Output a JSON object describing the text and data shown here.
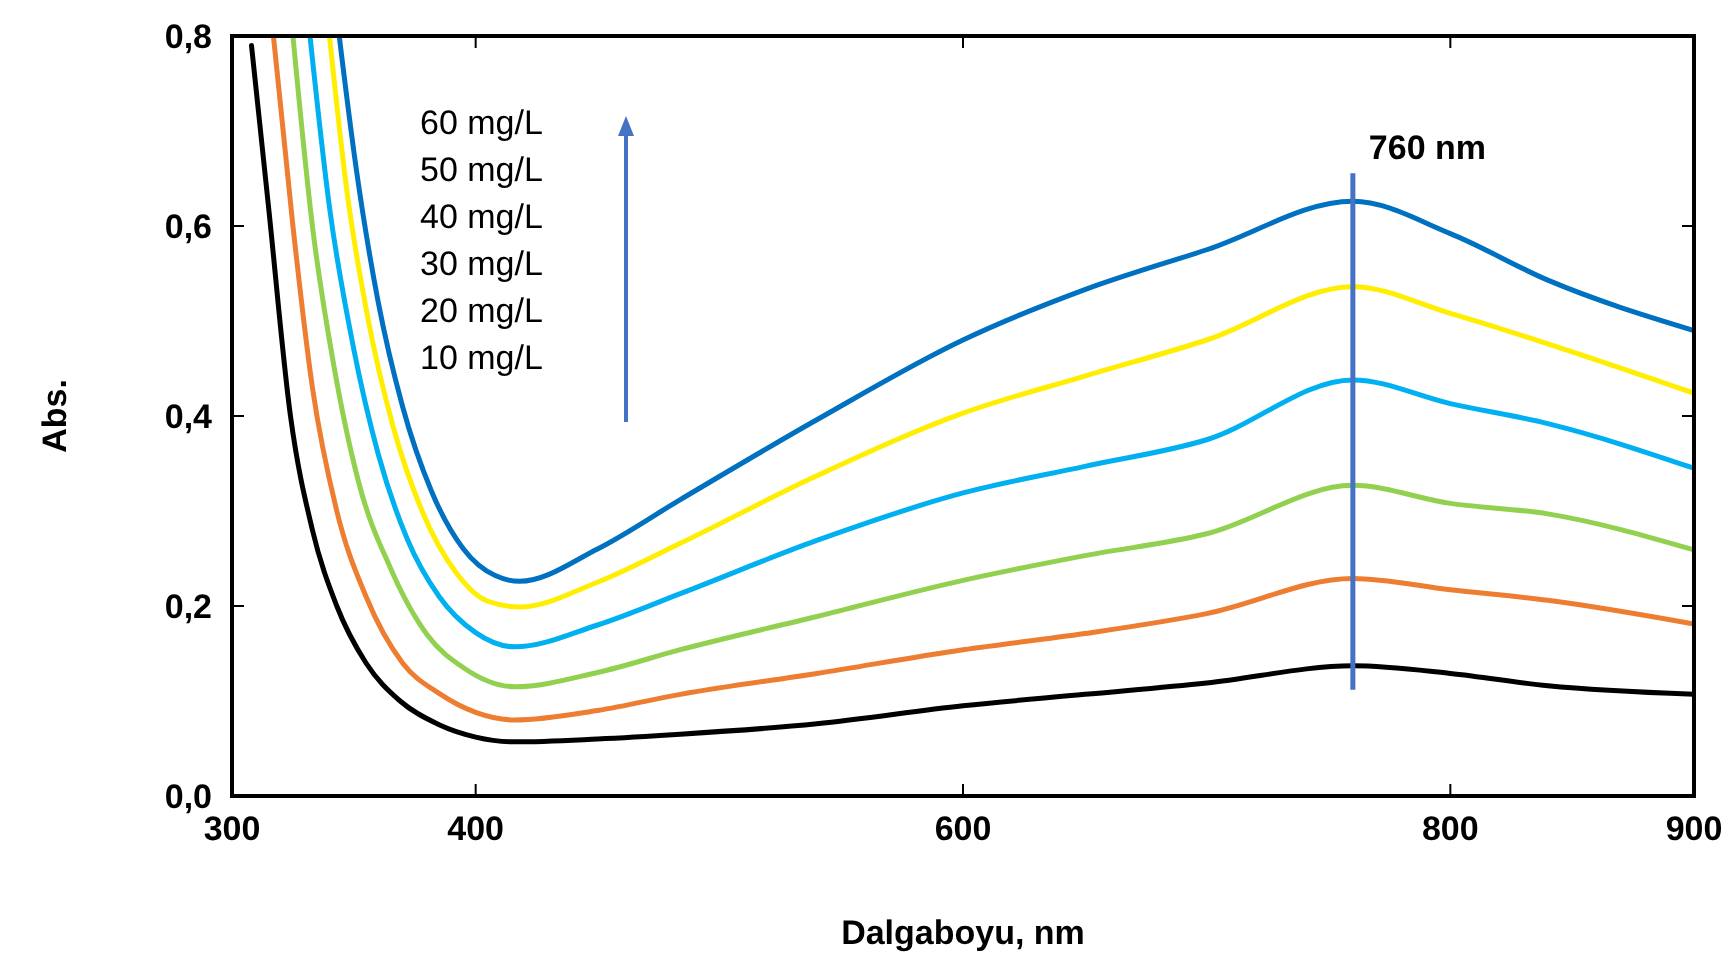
{
  "chart_data": {
    "type": "line",
    "xlabel": "Dalgaboyu, nm",
    "ylabel": "Abs.",
    "xlim": [
      300,
      900
    ],
    "ylim": [
      0,
      0.8
    ],
    "xticks": [
      300,
      400,
      600,
      800,
      900
    ],
    "yticks": [
      {
        "value": 0,
        "label": "0,0"
      },
      {
        "value": 0.2,
        "label": "0,2"
      },
      {
        "value": 0.4,
        "label": "0,4"
      },
      {
        "value": 0.6,
        "label": "0,6"
      },
      {
        "value": 0.8,
        "label": "0,8"
      }
    ],
    "grid": false,
    "marker": "none",
    "line_style": "solid",
    "ref_lines": [
      {
        "axis": "x",
        "value": 760,
        "label": "760 nm",
        "color": "#4472c4"
      }
    ],
    "annotations": [
      "60 mg/L",
      "50 mg/L",
      "40 mg/L",
      "30 mg/L",
      "20 mg/L",
      "10 mg/L"
    ],
    "series": [
      {
        "color": "#000000",
        "x": [
          308,
          315,
          324,
          333,
          343,
          355,
          369,
          385,
          400,
          416,
          450,
          484,
          540,
          600,
          650,
          700,
          760,
          800,
          840,
          900
        ],
        "values": [
          0.79,
          0.62,
          0.4,
          0.28,
          0.2,
          0.14,
          0.1,
          0.075,
          0.062,
          0.057,
          0.06,
          0.065,
          0.076,
          0.095,
          0.107,
          0.119,
          0.137,
          0.129,
          0.116,
          0.107
        ]
      },
      {
        "color": "#ed7d31",
        "x": [
          317,
          325,
          333,
          343,
          355,
          370,
          385,
          400,
          416,
          450,
          484,
          540,
          600,
          650,
          700,
          760,
          800,
          840,
          900
        ],
        "values": [
          0.8,
          0.6,
          0.43,
          0.3,
          0.21,
          0.14,
          0.108,
          0.088,
          0.08,
          0.09,
          0.107,
          0.129,
          0.154,
          0.171,
          0.192,
          0.229,
          0.217,
          0.206,
          0.181
        ]
      },
      {
        "color": "#92d050",
        "x": [
          325,
          333,
          342,
          352,
          365,
          380,
          395,
          416,
          450,
          484,
          540,
          600,
          650,
          700,
          760,
          800,
          840,
          900
        ],
        "values": [
          0.8,
          0.6,
          0.45,
          0.33,
          0.24,
          0.17,
          0.135,
          0.115,
          0.13,
          0.154,
          0.189,
          0.227,
          0.253,
          0.276,
          0.327,
          0.308,
          0.297,
          0.259
        ]
      },
      {
        "color": "#00b0f0",
        "x": [
          332,
          340,
          350,
          360,
          372,
          385,
          400,
          416,
          450,
          484,
          540,
          600,
          650,
          700,
          760,
          800,
          840,
          900
        ],
        "values": [
          0.8,
          0.62,
          0.47,
          0.36,
          0.27,
          0.21,
          0.172,
          0.157,
          0.18,
          0.213,
          0.269,
          0.319,
          0.347,
          0.375,
          0.438,
          0.413,
          0.392,
          0.345
        ]
      },
      {
        "color": "#ffee00",
        "x": [
          340,
          347,
          356,
          366,
          378,
          392,
          405,
          418,
          450,
          484,
          540,
          600,
          650,
          700,
          760,
          800,
          840,
          900
        ],
        "values": [
          0.8,
          0.64,
          0.5,
          0.39,
          0.3,
          0.235,
          0.205,
          0.199,
          0.225,
          0.266,
          0.337,
          0.403,
          0.442,
          0.48,
          0.536,
          0.508,
          0.476,
          0.424
        ]
      },
      {
        "color": "#0070c0",
        "x": [
          344,
          351,
          360,
          370,
          382,
          395,
          408,
          418,
          450,
          484,
          540,
          600,
          650,
          700,
          760,
          800,
          840,
          900
        ],
        "values": [
          0.8,
          0.66,
          0.52,
          0.41,
          0.32,
          0.26,
          0.232,
          0.226,
          0.26,
          0.312,
          0.396,
          0.48,
          0.533,
          0.575,
          0.626,
          0.592,
          0.543,
          0.49
        ]
      }
    ]
  }
}
